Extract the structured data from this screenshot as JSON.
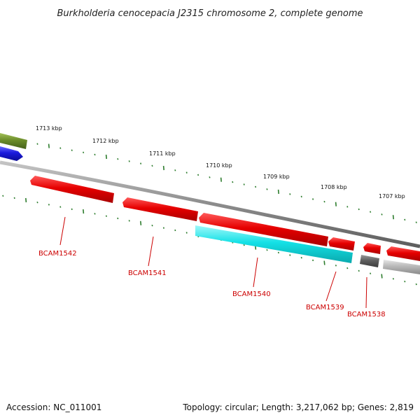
{
  "title": "Burkholderia cenocepacia J2315 chromosome 2, complete genome",
  "footer": {
    "accession": "Accession: NC_011001",
    "summary": "Topology: circular; Length: 3,217,062 bp; Genes: 2,819"
  },
  "colors": {
    "backbone": "#8c8c8c",
    "tick": "#2e7d2e",
    "gene_red": "#e60000",
    "gene_cyan": "#14e1e6",
    "gene_blue": "#1a1adc",
    "gene_olive": "#6b8c2a",
    "gene_darkgray": "#606060",
    "gene_lightgray": "#b8b8b8",
    "label_red": "#cc0000"
  },
  "kbp_labels": [
    "1713 kbp",
    "1712 kbp",
    "1711 kbp",
    "1710 kbp",
    "1709 kbp",
    "1708 kbp",
    "1707 kbp"
  ],
  "genes": [
    {
      "label": "BCAM1542",
      "color": "red",
      "strand": "minus"
    },
    {
      "label": "BCAM1541",
      "color": "red",
      "strand": "minus"
    },
    {
      "label": "BCAM1540",
      "color": "red",
      "strand": "minus"
    },
    {
      "label": "",
      "color": "cyan",
      "strand": "minus"
    },
    {
      "label": "BCAM1539",
      "color": "red",
      "strand": "minus"
    },
    {
      "label": "BCAM1538",
      "color": "red",
      "strand": "minus"
    },
    {
      "label": "",
      "color": "darkgray",
      "strand": "minus"
    },
    {
      "label": "",
      "color": "red",
      "strand": "minus"
    },
    {
      "label": "",
      "color": "lightgray",
      "strand": "minus"
    },
    {
      "label": "",
      "color": "olive",
      "strand": "plus"
    },
    {
      "label": "",
      "color": "blue",
      "strand": "plus"
    }
  ]
}
